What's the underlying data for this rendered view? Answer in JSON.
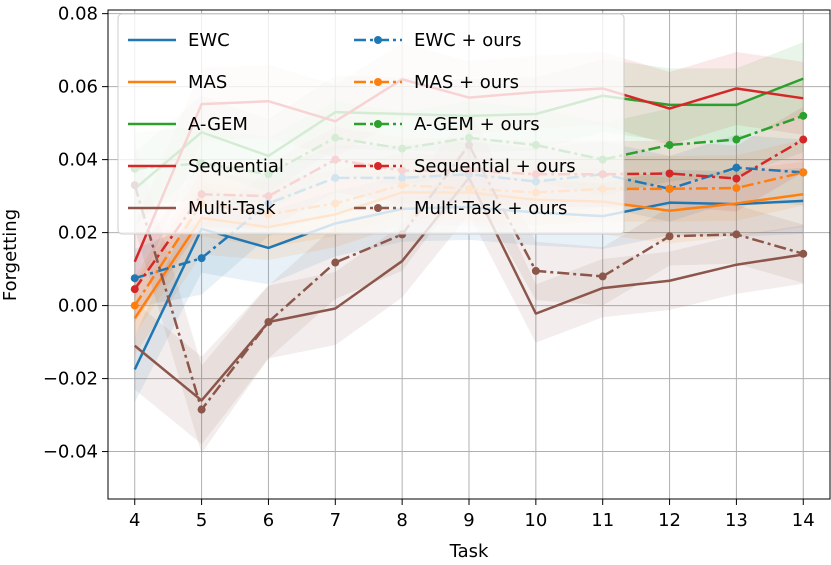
{
  "chart_data": {
    "type": "line",
    "title": "",
    "xlabel": "Task",
    "ylabel": "Forgetting",
    "x": [
      4,
      5,
      6,
      7,
      8,
      9,
      10,
      11,
      12,
      13,
      14
    ],
    "xlim": [
      3.6,
      14.4
    ],
    "ylim": [
      -0.053,
      0.081
    ],
    "yticks": [
      -0.04,
      -0.02,
      0.0,
      0.02,
      0.04,
      0.06,
      0.08
    ],
    "ytick_labels": [
      "−0.04",
      "−0.02",
      "0.00",
      "0.02",
      "0.04",
      "0.06",
      "0.08"
    ],
    "grid": true,
    "legend_position": "top-left",
    "series": [
      {
        "name": "EWC",
        "color": "#1f77b4",
        "dashed": false,
        "values": [
          -0.0175,
          0.021,
          0.0158,
          0.0225,
          0.0265,
          0.027,
          0.0255,
          0.0245,
          0.0282,
          0.0278,
          0.0287
        ],
        "band": [
          0.009,
          0.012,
          0.01,
          0.009,
          0.009,
          0.009,
          0.009,
          0.009,
          0.009,
          0.009,
          0.009
        ]
      },
      {
        "name": "MAS",
        "color": "#ff7f0e",
        "dashed": false,
        "values": [
          -0.0035,
          0.024,
          0.0215,
          0.025,
          0.031,
          0.031,
          0.029,
          0.0285,
          0.026,
          0.028,
          0.0305
        ],
        "band": [
          0.01,
          0.01,
          0.009,
          0.009,
          0.009,
          0.009,
          0.009,
          0.009,
          0.009,
          0.009,
          0.009
        ]
      },
      {
        "name": "A-GEM",
        "color": "#2ca02c",
        "dashed": false,
        "values": [
          0.032,
          0.0475,
          0.041,
          0.053,
          0.0525,
          0.052,
          0.0525,
          0.0575,
          0.055,
          0.055,
          0.0622
        ],
        "band": [
          0.01,
          0.01,
          0.01,
          0.01,
          0.01,
          0.01,
          0.01,
          0.01,
          0.01,
          0.01,
          0.01
        ]
      },
      {
        "name": "Sequential",
        "color": "#d62728",
        "dashed": false,
        "values": [
          0.012,
          0.0552,
          0.056,
          0.0505,
          0.062,
          0.057,
          0.0585,
          0.0595,
          0.054,
          0.0595,
          0.0568
        ],
        "band": [
          0.01,
          0.01,
          0.01,
          0.01,
          0.01,
          0.01,
          0.01,
          0.01,
          0.01,
          0.01,
          0.01
        ]
      },
      {
        "name": "Multi-Task",
        "color": "#8c564b",
        "dashed": false,
        "values": [
          -0.011,
          -0.026,
          -0.0045,
          -0.0008,
          0.0122,
          0.035,
          -0.0022,
          0.0048,
          0.0068,
          0.0112,
          0.014
        ],
        "band": [
          0.012,
          0.012,
          0.01,
          0.01,
          0.01,
          0.01,
          0.008,
          0.008,
          0.008,
          0.008,
          0.008
        ]
      },
      {
        "name": "EWC + ours",
        "color": "#1f77b4",
        "dashed": true,
        "values": [
          0.0075,
          0.013,
          0.028,
          0.035,
          0.035,
          0.036,
          0.034,
          0.036,
          0.032,
          0.0378,
          0.0365
        ],
        "band": [
          0.008,
          0.01,
          0.009,
          0.009,
          0.009,
          0.009,
          0.009,
          0.009,
          0.009,
          0.009,
          0.009
        ]
      },
      {
        "name": "MAS + ours",
        "color": "#ff7f0e",
        "dashed": true,
        "values": [
          0.0,
          0.028,
          0.025,
          0.028,
          0.033,
          0.032,
          0.031,
          0.032,
          0.032,
          0.0322,
          0.0365
        ],
        "band": [
          0.008,
          0.009,
          0.009,
          0.009,
          0.009,
          0.009,
          0.009,
          0.009,
          0.009,
          0.009,
          0.009
        ]
      },
      {
        "name": "A-GEM + ours",
        "color": "#2ca02c",
        "dashed": true,
        "values": [
          0.0375,
          0.039,
          0.036,
          0.046,
          0.043,
          0.046,
          0.044,
          0.04,
          0.044,
          0.0455,
          0.052
        ],
        "band": [
          0.01,
          0.01,
          0.01,
          0.01,
          0.01,
          0.01,
          0.01,
          0.01,
          0.01,
          0.01,
          0.01
        ]
      },
      {
        "name": "Sequential + ours",
        "color": "#d62728",
        "dashed": true,
        "values": [
          0.0045,
          0.0305,
          0.03,
          0.04,
          0.037,
          0.037,
          0.036,
          0.036,
          0.0362,
          0.0348,
          0.0455
        ],
        "band": [
          0.009,
          0.009,
          0.009,
          0.009,
          0.009,
          0.009,
          0.009,
          0.009,
          0.009,
          0.009,
          0.009
        ]
      },
      {
        "name": "Multi-Task + ours",
        "color": "#8c564b",
        "dashed": true,
        "values": [
          0.033,
          -0.0285,
          -0.0045,
          0.0118,
          0.0195,
          0.044,
          0.0095,
          0.008,
          0.019,
          0.0195,
          0.0142
        ],
        "band": [
          0.012,
          0.012,
          0.01,
          0.01,
          0.01,
          0.01,
          0.008,
          0.008,
          0.008,
          0.008,
          0.008
        ]
      }
    ]
  }
}
